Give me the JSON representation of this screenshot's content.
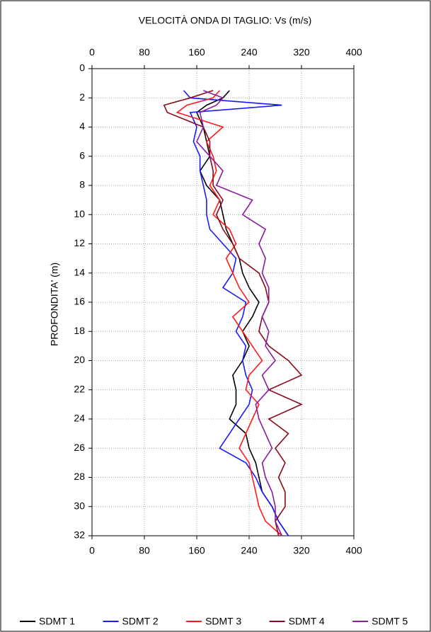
{
  "chart_data": {
    "type": "line",
    "orientation": "vertical",
    "title": "VELOCITÀ ONDA DI TAGLIO: Vs (m/s)",
    "ylabel": "PROFONDITA' (m)",
    "x": [
      1.5,
      2,
      2.5,
      3,
      4,
      5,
      6,
      7,
      8,
      9,
      10,
      11,
      12,
      13,
      14,
      15,
      16,
      17,
      18,
      19,
      20,
      21,
      22,
      23,
      24,
      25,
      26,
      27,
      28,
      29,
      30,
      31,
      32
    ],
    "xlim": [
      0,
      400
    ],
    "xticks": [
      0,
      80,
      160,
      240,
      320,
      400
    ],
    "ylim": [
      0,
      32
    ],
    "y_inverted": true,
    "yticks": [
      0,
      2,
      4,
      6,
      8,
      10,
      12,
      14,
      16,
      18,
      20,
      22,
      24,
      26,
      28,
      30,
      32
    ],
    "grid": true,
    "legend": "bottom",
    "series": [
      {
        "name": "SDMT 1",
        "color": "#000000",
        "values": [
          210,
          200,
          175,
          160,
          170,
          175,
          180,
          165,
          175,
          195,
          200,
          205,
          215,
          225,
          230,
          240,
          255,
          245,
          230,
          240,
          230,
          215,
          220,
          220,
          210,
          235,
          240,
          250,
          255,
          260,
          275,
          285,
          300
        ]
      },
      {
        "name": "SDMT 2",
        "color": "#1a1aff",
        "values": [
          140,
          150,
          290,
          150,
          160,
          155,
          165,
          165,
          170,
          175,
          175,
          180,
          200,
          220,
          215,
          200,
          235,
          230,
          220,
          235,
          230,
          235,
          245,
          240,
          225,
          210,
          195,
          235,
          250,
          260,
          275,
          285,
          300
        ]
      },
      {
        "name": "SDMT 3",
        "color": "#ff1a1a",
        "values": [
          195,
          185,
          145,
          130,
          200,
          175,
          185,
          190,
          180,
          195,
          185,
          210,
          220,
          205,
          215,
          225,
          240,
          215,
          230,
          245,
          260,
          240,
          235,
          255,
          245,
          235,
          225,
          240,
          245,
          250,
          255,
          265,
          290
        ]
      },
      {
        "name": "SDMT 4",
        "color": "#8b0a1a",
        "values": [
          185,
          150,
          110,
          115,
          170,
          180,
          180,
          185,
          185,
          200,
          190,
          200,
          215,
          225,
          255,
          265,
          270,
          260,
          255,
          270,
          300,
          320,
          270,
          320,
          270,
          300,
          280,
          295,
          285,
          295,
          295,
          280,
          285
        ]
      },
      {
        "name": "SDMT 5",
        "color": "#8a1a9e",
        "values": [
          170,
          200,
          190,
          165,
          170,
          160,
          180,
          200,
          190,
          245,
          230,
          265,
          255,
          265,
          260,
          270,
          270,
          260,
          270,
          265,
          280,
          260,
          270,
          250,
          255,
          265,
          275,
          260,
          265,
          275,
          280,
          280,
          290
        ]
      }
    ]
  }
}
